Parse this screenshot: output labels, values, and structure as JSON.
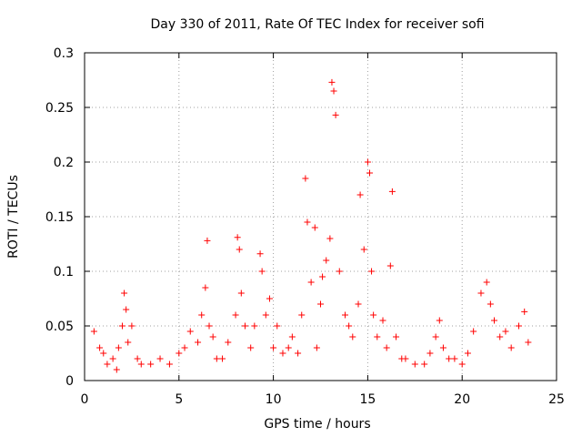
{
  "chart_data": {
    "type": "scatter",
    "title": "Day 330 of 2011, Rate Of TEC Index for receiver sofi",
    "xlabel": "GPS time / hours",
    "ylabel": "ROTI / TECUs",
    "xlim": [
      0,
      25
    ],
    "ylim": [
      0,
      0.3
    ],
    "xticks": [
      "0",
      "5",
      "10",
      "15",
      "20",
      "25"
    ],
    "yticks": [
      "0",
      "0.05",
      "0.1",
      "0.15",
      "0.2",
      "0.25",
      "0.3"
    ],
    "grid": true,
    "marker": "+",
    "color": "#ff0000",
    "series": [
      {
        "x": [
          0.5,
          0.8,
          1.0,
          1.2,
          1.5,
          1.7,
          1.8,
          2.0,
          2.1,
          2.2,
          2.3,
          2.5,
          2.8,
          3.0,
          3.5,
          4.0,
          4.5,
          5.0,
          5.3,
          5.6,
          6.0,
          6.2,
          6.4,
          6.5,
          6.6,
          6.8,
          7.0,
          7.3,
          7.6,
          8.0,
          8.1,
          8.2,
          8.3,
          8.5,
          8.8,
          9.0,
          9.3,
          9.4,
          9.6,
          9.8,
          10.0,
          10.2,
          10.5,
          10.8,
          11.0,
          11.3,
          11.5,
          11.7,
          11.8,
          12.0,
          12.2,
          12.3,
          12.5,
          12.6,
          12.8,
          13.0,
          13.1,
          13.2,
          13.3,
          13.5,
          13.8,
          14.0,
          14.2,
          14.5,
          14.6,
          14.8,
          15.0,
          15.1,
          15.2,
          15.3,
          15.5,
          15.8,
          16.0,
          16.2,
          16.3,
          16.5,
          16.8,
          17.0,
          17.5,
          18.0,
          18.3,
          18.6,
          18.8,
          19.0,
          19.3,
          19.6,
          20.0,
          20.3,
          20.6,
          21.0,
          21.3,
          21.5,
          21.7,
          22.0,
          22.3,
          22.6,
          23.0,
          23.3,
          23.5
        ],
        "y": [
          0.045,
          0.03,
          0.025,
          0.015,
          0.02,
          0.01,
          0.03,
          0.05,
          0.08,
          0.065,
          0.035,
          0.05,
          0.02,
          0.015,
          0.015,
          0.02,
          0.015,
          0.025,
          0.03,
          0.045,
          0.035,
          0.06,
          0.085,
          0.128,
          0.05,
          0.04,
          0.02,
          0.02,
          0.035,
          0.06,
          0.131,
          0.12,
          0.08,
          0.05,
          0.03,
          0.05,
          0.116,
          0.1,
          0.06,
          0.075,
          0.03,
          0.05,
          0.025,
          0.03,
          0.04,
          0.025,
          0.06,
          0.185,
          0.145,
          0.09,
          0.14,
          0.03,
          0.07,
          0.095,
          0.11,
          0.13,
          0.273,
          0.265,
          0.243,
          0.1,
          0.06,
          0.05,
          0.04,
          0.07,
          0.17,
          0.12,
          0.2,
          0.19,
          0.1,
          0.06,
          0.04,
          0.055,
          0.03,
          0.105,
          0.173,
          0.04,
          0.02,
          0.02,
          0.015,
          0.015,
          0.025,
          0.04,
          0.055,
          0.03,
          0.02,
          0.02,
          0.015,
          0.025,
          0.045,
          0.08,
          0.09,
          0.07,
          0.055,
          0.04,
          0.045,
          0.03,
          0.05,
          0.063,
          0.035
        ]
      }
    ]
  }
}
